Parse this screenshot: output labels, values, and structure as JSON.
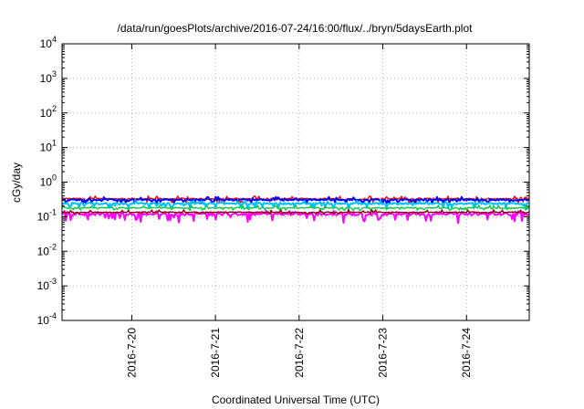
{
  "chart_data": {
    "type": "line",
    "title": "/data/run/goesPlots/archive/2016-07-24/16:00/flux/../bryn/5daysEarth.plot",
    "xlabel": "Coordinated Universal Time (UTC)",
    "ylabel": "cGy/day",
    "yscale": "log",
    "ylim": [
      0.0001,
      10000
    ],
    "xlim": [
      "2016-07-19 04:00",
      "2016-07-24 18:00"
    ],
    "grid": true,
    "yticks": [
      {
        "base": "10",
        "exp": "-4",
        "value": 0.0001
      },
      {
        "base": "10",
        "exp": "-3",
        "value": 0.001
      },
      {
        "base": "10",
        "exp": "-2",
        "value": 0.01
      },
      {
        "base": "10",
        "exp": "-1",
        "value": 0.1
      },
      {
        "base": "10",
        "exp": "0",
        "value": 1
      },
      {
        "base": "10",
        "exp": "1",
        "value": 10
      },
      {
        "base": "10",
        "exp": "2",
        "value": 100
      },
      {
        "base": "10",
        "exp": "3",
        "value": 1000
      },
      {
        "base": "10",
        "exp": "4",
        "value": 10000
      }
    ],
    "xticks": [
      {
        "label": "2016-7-20",
        "value": "2016-07-20 00:00"
      },
      {
        "label": "2016-7-21",
        "value": "2016-07-21 00:00"
      },
      {
        "label": "2016-7-22",
        "value": "2016-07-22 00:00"
      },
      {
        "label": "2016-7-23",
        "value": "2016-07-23 00:00"
      },
      {
        "label": "2016-7-24",
        "value": "2016-07-24 00:00"
      }
    ],
    "series": [
      {
        "color": "#ff0000",
        "base": 0.33,
        "noise": 0.05,
        "dip": 0.78
      },
      {
        "color": "#0000ff",
        "base": 0.31,
        "noise": 0.05,
        "dip": 0.8
      },
      {
        "color": "#00bfff",
        "base": 0.24,
        "noise": 0.06,
        "dip": 0.7
      },
      {
        "color": "#00cc44",
        "base": 0.18,
        "noise": 0.035,
        "dip": 0.85
      },
      {
        "color": "#ff00ff",
        "base": 0.12,
        "noise": 0.09,
        "dip": 0.55
      },
      {
        "color": "#8b0000",
        "base": 0.135,
        "noise": 0.025,
        "dip": 0.9
      }
    ]
  }
}
